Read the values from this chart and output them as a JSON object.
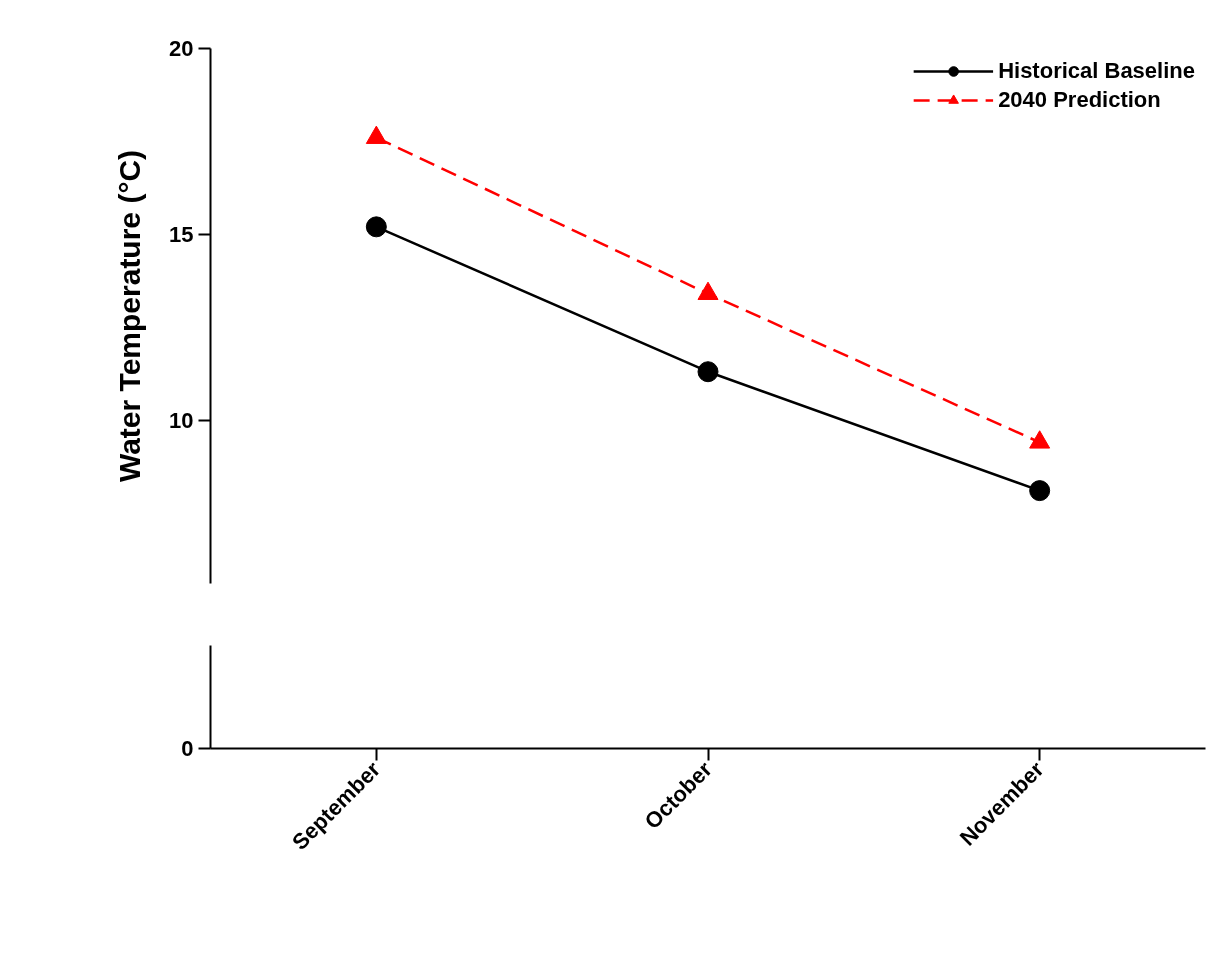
{
  "chart_data": [
    {
      "type": "line",
      "ylabel": "Water Temperature (°C)",
      "categories": [
        "September",
        "October",
        "November"
      ],
      "ylim": [
        5.6,
        20
      ],
      "yticks": [
        10,
        15,
        20
      ],
      "tick_labels": "y",
      "legend": "top right",
      "series": [
        {
          "name": "Historical Baseline",
          "color": "#000000",
          "values": [
            15.2,
            11.3,
            8.1
          ],
          "marker": "circle",
          "line_style": "solid"
        },
        {
          "name": "2040 Prediction",
          "color": "#ff0000",
          "values": [
            17.6,
            13.4,
            9.4
          ],
          "marker": "triangle",
          "line_style": "dashed"
        }
      ]
    },
    {
      "type": "other",
      "annotations": [
        "0"
      ]
    }
  ]
}
